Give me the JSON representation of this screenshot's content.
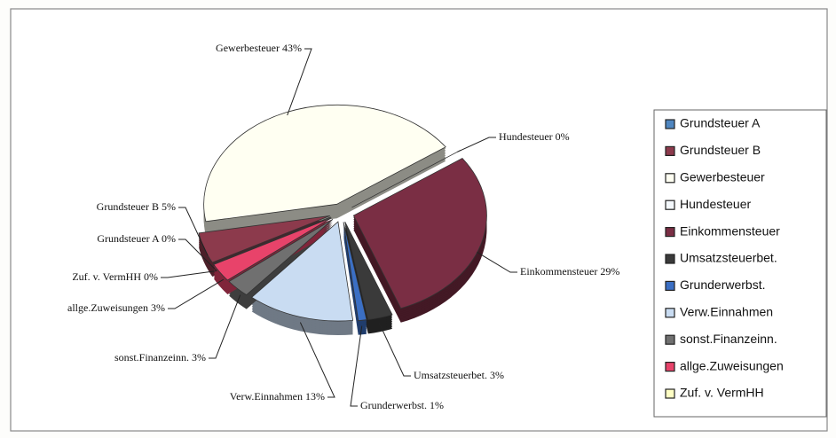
{
  "chart_data": {
    "type": "pie",
    "categories": [
      "Grundsteuer A",
      "Grundsteuer B",
      "Gewerbesteuer",
      "Hundesteuer",
      "Einkommensteuer",
      "Umsatzsteuerbet.",
      "Grunderwerbst.",
      "Verw.Einnahmen",
      "sonst.Finanzeinn.",
      "allge.Zuweisungen",
      "Zuf. v. VermHH"
    ],
    "values": [
      0,
      5,
      43,
      0,
      29,
      3,
      1,
      13,
      3,
      3,
      0
    ],
    "value_labels": [
      "0%",
      "5%",
      "43%",
      "0%",
      "29%",
      "3%",
      "1%",
      "13%",
      "3%",
      "3%",
      "0%"
    ],
    "colors": [
      "#4f86c0",
      "#8c3a4c",
      "#fffff2",
      "#f4f8fc",
      "#7a2e44",
      "#3a3a3a",
      "#3b6fc4",
      "#c9dcf2",
      "#707070",
      "#e8436a",
      "#ffffc4"
    ],
    "legend": "right"
  }
}
